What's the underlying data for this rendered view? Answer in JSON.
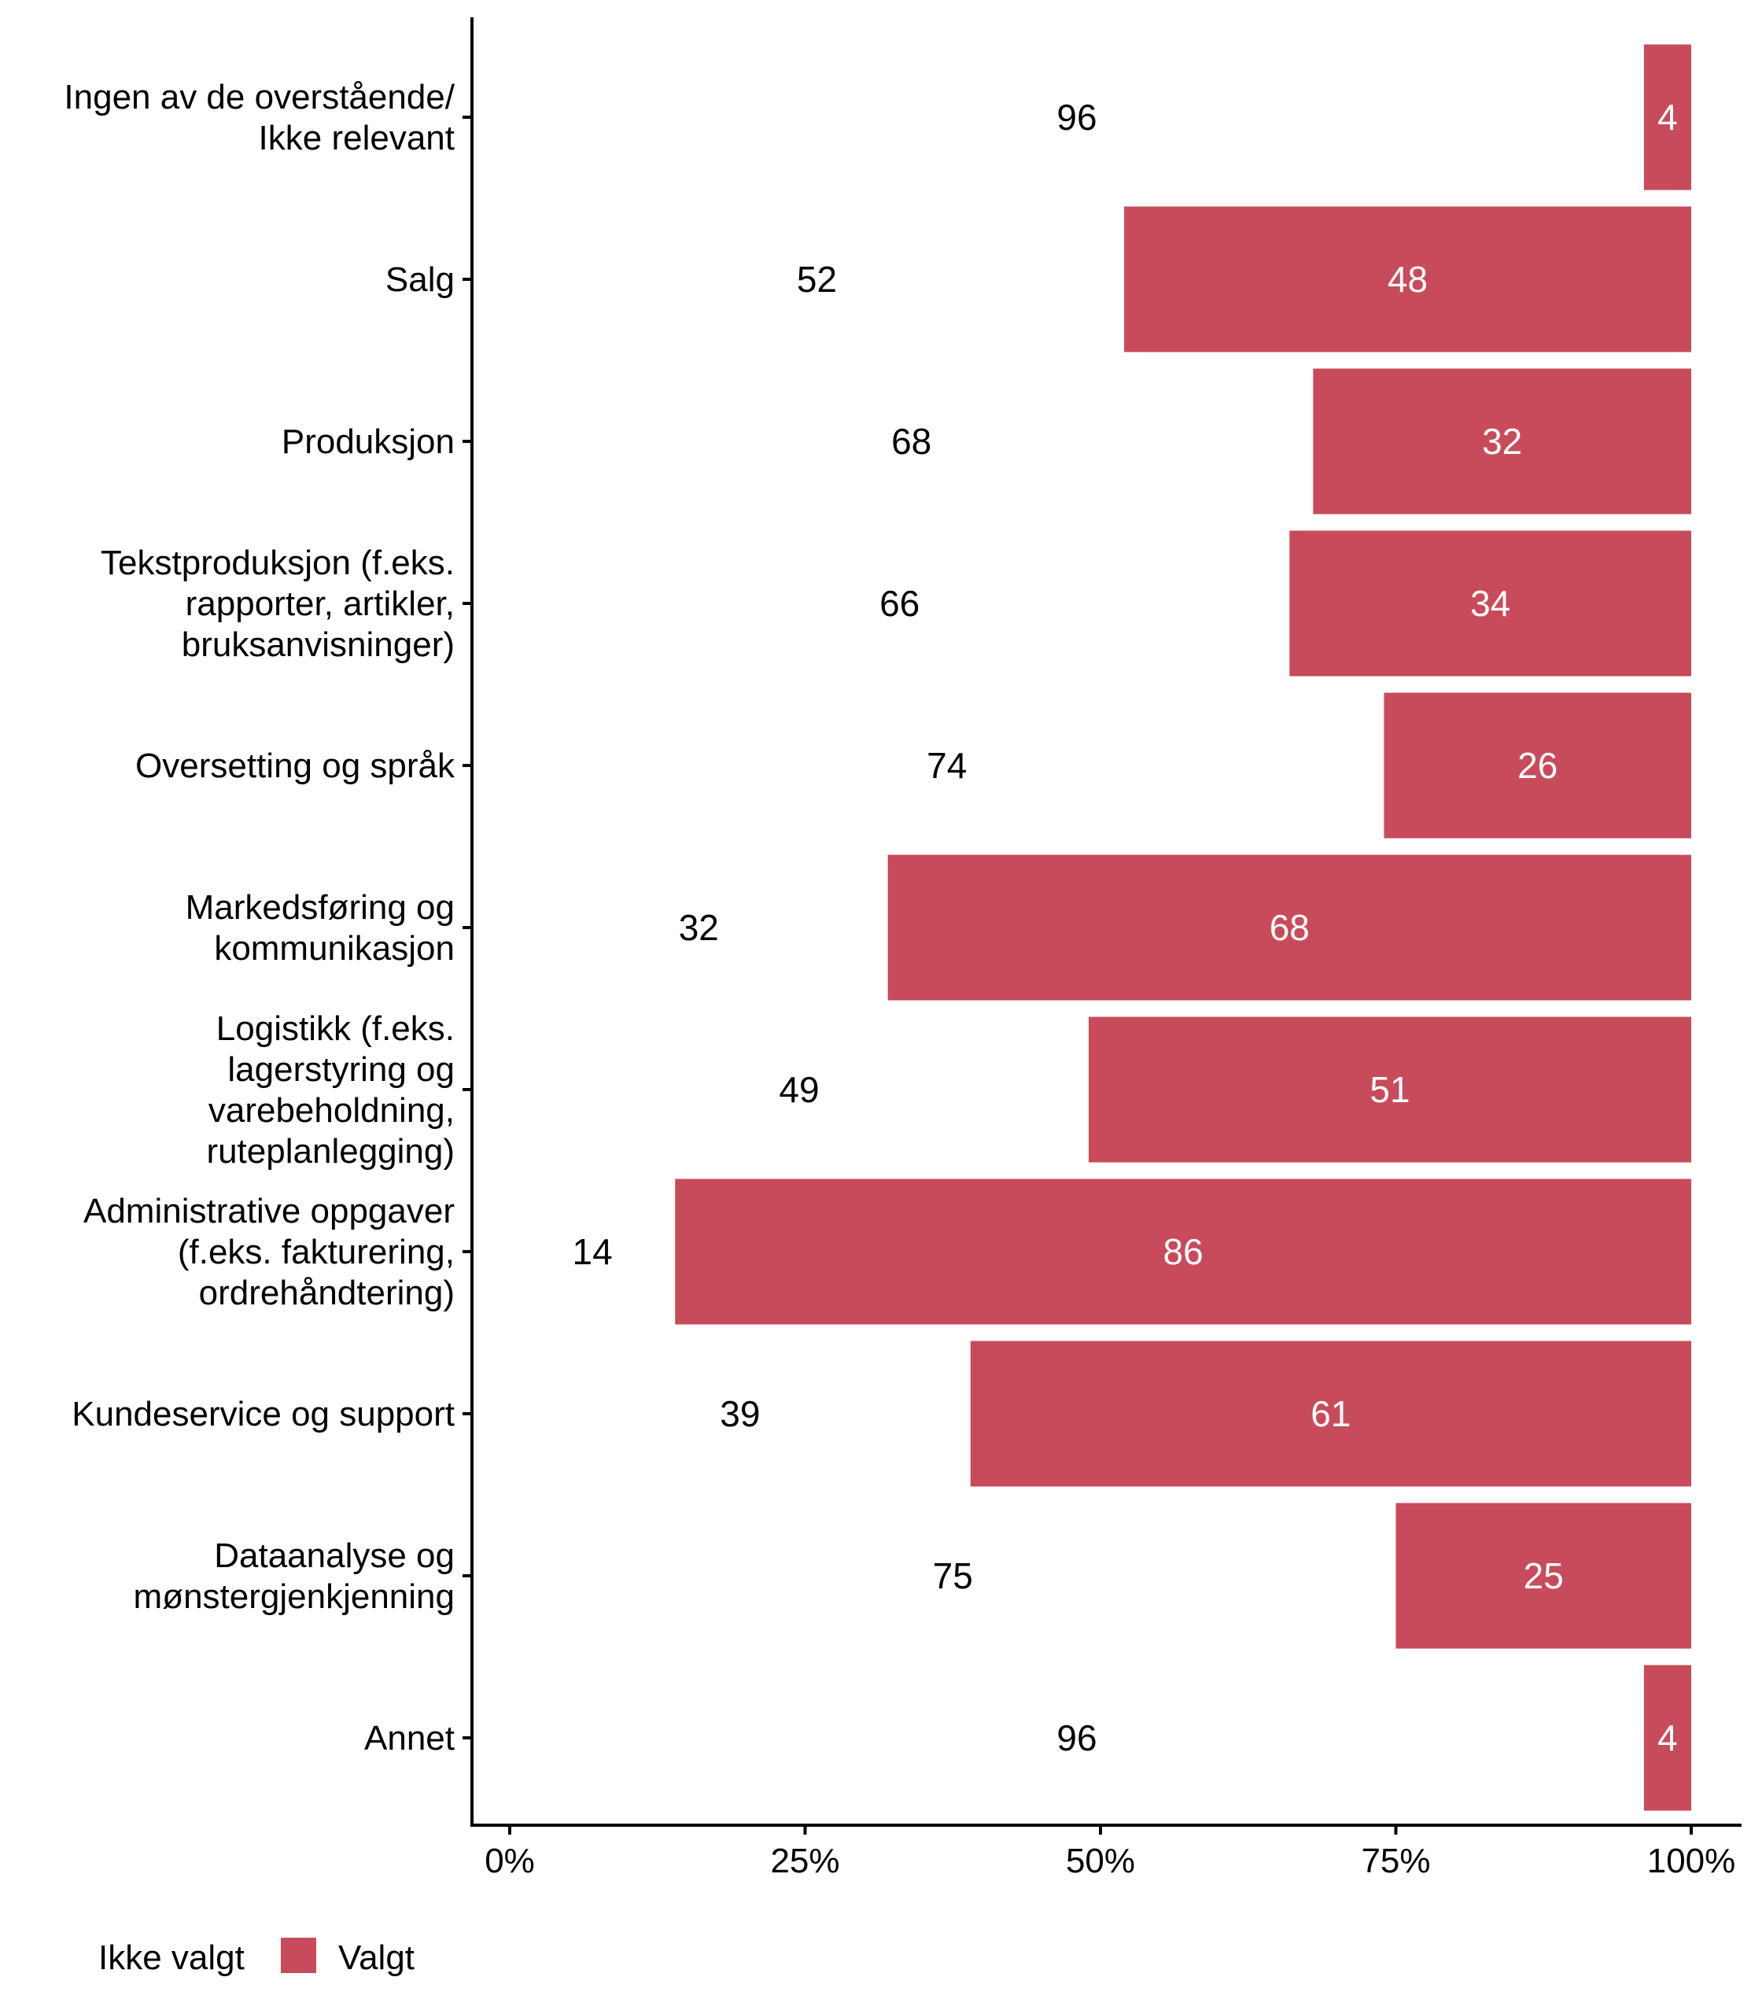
{
  "chart_data": {
    "type": "bar",
    "orientation": "horizontal",
    "stacked": true,
    "normalized": true,
    "title": "",
    "xlabel": "",
    "ylabel": "",
    "xlim": [
      0,
      100
    ],
    "x_ticks": [
      "0%",
      "25%",
      "50%",
      "75%",
      "100%"
    ],
    "x_tick_values": [
      0,
      25,
      50,
      75,
      100
    ],
    "grid": false,
    "legend_position": "bottom-left",
    "categories": [
      "Ingen av de overstående/\nIkke relevant",
      "Salg",
      "Produksjon",
      "Tekstproduksjon (f.eks.\nrapporter, artikler,\nbruksanvisninger)",
      "Oversetting og språk",
      "Markedsføring og\nkommunikasjon",
      "Logistikk (f.eks.\nlagerstyring og\nvarebeholdning,\nruteplanlegging)",
      "Administrative oppgaver\n(f.eks. fakturering,\nordrehåndtering)",
      "Kundeservice og support",
      "Dataanalyse og\nmønstergjenkjenning",
      "Annet"
    ],
    "series": [
      {
        "name": "Ikke valgt",
        "color": "#FFFFFF",
        "label_color": "#000000",
        "values": [
          96,
          52,
          68,
          66,
          74,
          32,
          49,
          14,
          39,
          75,
          96
        ],
        "labels": [
          "96",
          "52",
          "68",
          "66",
          "74",
          "32",
          "49",
          "14",
          "39",
          "75",
          "96"
        ]
      },
      {
        "name": "Valgt",
        "color": "#C84B5B",
        "label_color": "#FFFFFF",
        "values": [
          4,
          48,
          32,
          34,
          26,
          68,
          51,
          86,
          61,
          25,
          4
        ],
        "labels": [
          "4",
          "48",
          "32",
          "34",
          "26",
          "68",
          "51",
          "86",
          "61",
          "25",
          "4"
        ]
      }
    ]
  },
  "legend": {
    "items": [
      {
        "label": "Ikke valgt",
        "color": "#FFFFFF"
      },
      {
        "label": "Valgt",
        "color": "#C84B5B"
      }
    ]
  }
}
